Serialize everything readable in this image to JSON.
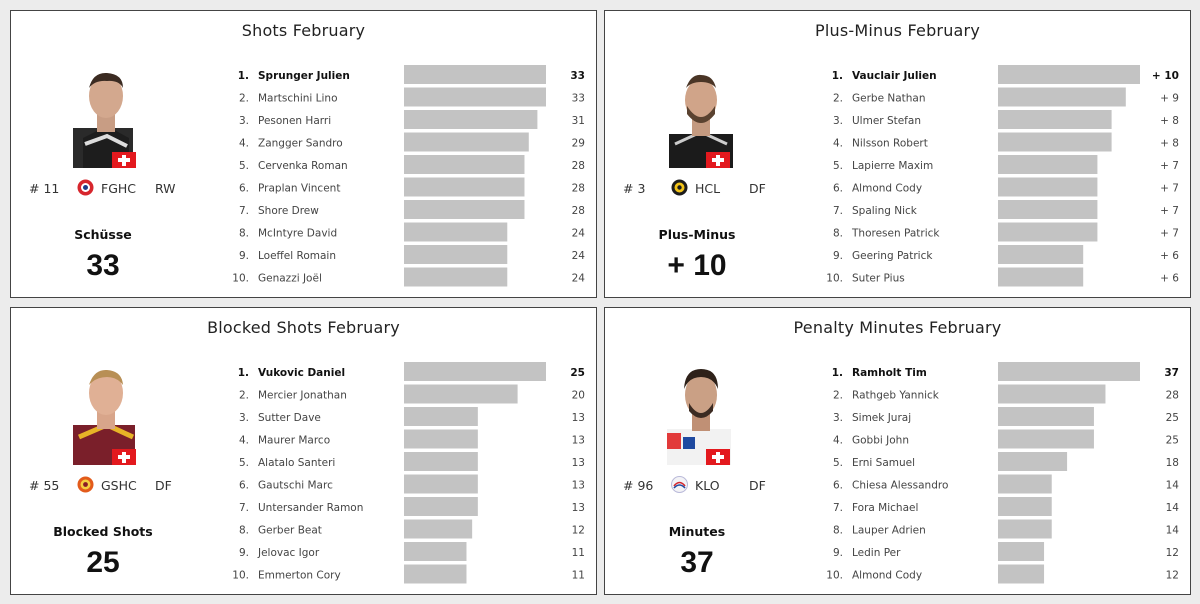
{
  "colors": {
    "bar": "#c3c3c3",
    "flag": "#e3191e"
  },
  "chart_data": [
    {
      "type": "bar",
      "title": "Shots February",
      "leader": {
        "number": "# 11",
        "team": "FGHC",
        "position": "RW",
        "metric": "Schüsse",
        "value": "33"
      },
      "ranks": [
        "1.",
        "2.",
        "3.",
        "4.",
        "5.",
        "6.",
        "7.",
        "8.",
        "9.",
        "10."
      ],
      "categories": [
        "Sprunger Julien",
        "Martschini Lino",
        "Pesonen Harri",
        "Zangger Sandro",
        "Cervenka Roman",
        "Praplan Vincent",
        "Shore Drew",
        "McIntyre David",
        "Loeffel Romain",
        "Genazzi Joël"
      ],
      "values": [
        33,
        33,
        31,
        29,
        28,
        28,
        28,
        24,
        24,
        24
      ],
      "labels": [
        "33",
        "33",
        "31",
        "29",
        "28",
        "28",
        "28",
        "24",
        "24",
        "24"
      ]
    },
    {
      "type": "bar",
      "title": "Plus-Minus February",
      "leader": {
        "number": "# 3",
        "team": "HCL",
        "position": "DF",
        "metric": "Plus-Minus",
        "value": "+ 10"
      },
      "ranks": [
        "1.",
        "2.",
        "3.",
        "4.",
        "5.",
        "6.",
        "7.",
        "8.",
        "9.",
        "10."
      ],
      "categories": [
        "Vauclair Julien",
        "Gerbe Nathan",
        "Ulmer Stefan",
        "Nilsson Robert",
        "Lapierre Maxim",
        "Almond Cody",
        "Spaling Nick",
        "Thoresen Patrick",
        "Geering Patrick",
        "Suter Pius"
      ],
      "values": [
        10,
        9,
        8,
        8,
        7,
        7,
        7,
        7,
        6,
        6
      ],
      "labels": [
        "+ 10",
        "+ 9",
        "+ 8",
        "+ 8",
        "+ 7",
        "+ 7",
        "+ 7",
        "+ 7",
        "+ 6",
        "+ 6"
      ]
    },
    {
      "type": "bar",
      "title": "Blocked Shots February",
      "leader": {
        "number": "# 55",
        "team": "GSHC",
        "position": "DF",
        "metric": "Blocked Shots",
        "value": "25"
      },
      "ranks": [
        "1.",
        "2.",
        "3.",
        "4.",
        "5.",
        "6.",
        "7.",
        "8.",
        "9.",
        "10."
      ],
      "categories": [
        "Vukovic Daniel",
        "Mercier Jonathan",
        "Sutter Dave",
        "Maurer Marco",
        "Alatalo Santeri",
        "Gautschi Marc",
        "Untersander Ramon",
        "Gerber Beat",
        "Jelovac Igor",
        "Emmerton Cory"
      ],
      "values": [
        25,
        20,
        13,
        13,
        13,
        13,
        13,
        12,
        11,
        11
      ],
      "labels": [
        "25",
        "20",
        "13",
        "13",
        "13",
        "13",
        "13",
        "12",
        "11",
        "11"
      ]
    },
    {
      "type": "bar",
      "title": "Penalty Minutes February",
      "leader": {
        "number": "# 96",
        "team": "KLO",
        "position": "DF",
        "metric": "Minutes",
        "value": "37"
      },
      "ranks": [
        "1.",
        "2.",
        "3.",
        "4.",
        "5.",
        "6.",
        "7.",
        "8.",
        "9.",
        "10."
      ],
      "categories": [
        "Ramholt Tim",
        "Rathgeb Yannick",
        "Simek Juraj",
        "Gobbi John",
        "Erni Samuel",
        "Chiesa Alessandro",
        "Fora Michael",
        "Lauper Adrien",
        "Ledin Per",
        "Almond Cody"
      ],
      "values": [
        37,
        28,
        25,
        25,
        18,
        14,
        14,
        14,
        12,
        12
      ],
      "labels": [
        "37",
        "28",
        "25",
        "25",
        "18",
        "14",
        "14",
        "14",
        "12",
        "12"
      ]
    }
  ]
}
